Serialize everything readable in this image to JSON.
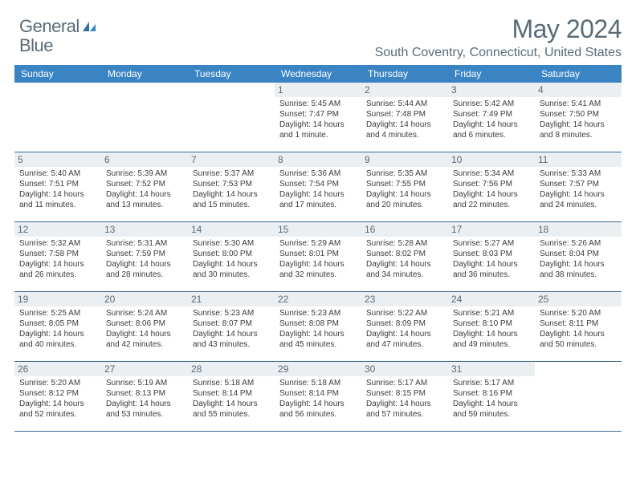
{
  "logo": {
    "text_general": "General",
    "text_blue": "Blue"
  },
  "title": "May 2024",
  "location": "South Coventry, Connecticut, United States",
  "day_names": [
    "Sunday",
    "Monday",
    "Tuesday",
    "Wednesday",
    "Thursday",
    "Friday",
    "Saturday"
  ],
  "colors": {
    "header_bg": "#3a84c4",
    "header_text": "#ffffff",
    "daynum_bg": "#eceff1",
    "text_muted": "#5a6b78",
    "border": "#3a6a94"
  },
  "weeks": [
    [
      {
        "n": "",
        "empty": true
      },
      {
        "n": "",
        "empty": true
      },
      {
        "n": "",
        "empty": true
      },
      {
        "n": "1",
        "sr": "Sunrise: 5:45 AM",
        "ss": "Sunset: 7:47 PM",
        "dl": "Daylight: 14 hours and 1 minute."
      },
      {
        "n": "2",
        "sr": "Sunrise: 5:44 AM",
        "ss": "Sunset: 7:48 PM",
        "dl": "Daylight: 14 hours and 4 minutes."
      },
      {
        "n": "3",
        "sr": "Sunrise: 5:42 AM",
        "ss": "Sunset: 7:49 PM",
        "dl": "Daylight: 14 hours and 6 minutes."
      },
      {
        "n": "4",
        "sr": "Sunrise: 5:41 AM",
        "ss": "Sunset: 7:50 PM",
        "dl": "Daylight: 14 hours and 8 minutes."
      }
    ],
    [
      {
        "n": "5",
        "sr": "Sunrise: 5:40 AM",
        "ss": "Sunset: 7:51 PM",
        "dl": "Daylight: 14 hours and 11 minutes."
      },
      {
        "n": "6",
        "sr": "Sunrise: 5:39 AM",
        "ss": "Sunset: 7:52 PM",
        "dl": "Daylight: 14 hours and 13 minutes."
      },
      {
        "n": "7",
        "sr": "Sunrise: 5:37 AM",
        "ss": "Sunset: 7:53 PM",
        "dl": "Daylight: 14 hours and 15 minutes."
      },
      {
        "n": "8",
        "sr": "Sunrise: 5:36 AM",
        "ss": "Sunset: 7:54 PM",
        "dl": "Daylight: 14 hours and 17 minutes."
      },
      {
        "n": "9",
        "sr": "Sunrise: 5:35 AM",
        "ss": "Sunset: 7:55 PM",
        "dl": "Daylight: 14 hours and 20 minutes."
      },
      {
        "n": "10",
        "sr": "Sunrise: 5:34 AM",
        "ss": "Sunset: 7:56 PM",
        "dl": "Daylight: 14 hours and 22 minutes."
      },
      {
        "n": "11",
        "sr": "Sunrise: 5:33 AM",
        "ss": "Sunset: 7:57 PM",
        "dl": "Daylight: 14 hours and 24 minutes."
      }
    ],
    [
      {
        "n": "12",
        "sr": "Sunrise: 5:32 AM",
        "ss": "Sunset: 7:58 PM",
        "dl": "Daylight: 14 hours and 26 minutes."
      },
      {
        "n": "13",
        "sr": "Sunrise: 5:31 AM",
        "ss": "Sunset: 7:59 PM",
        "dl": "Daylight: 14 hours and 28 minutes."
      },
      {
        "n": "14",
        "sr": "Sunrise: 5:30 AM",
        "ss": "Sunset: 8:00 PM",
        "dl": "Daylight: 14 hours and 30 minutes."
      },
      {
        "n": "15",
        "sr": "Sunrise: 5:29 AM",
        "ss": "Sunset: 8:01 PM",
        "dl": "Daylight: 14 hours and 32 minutes."
      },
      {
        "n": "16",
        "sr": "Sunrise: 5:28 AM",
        "ss": "Sunset: 8:02 PM",
        "dl": "Daylight: 14 hours and 34 minutes."
      },
      {
        "n": "17",
        "sr": "Sunrise: 5:27 AM",
        "ss": "Sunset: 8:03 PM",
        "dl": "Daylight: 14 hours and 36 minutes."
      },
      {
        "n": "18",
        "sr": "Sunrise: 5:26 AM",
        "ss": "Sunset: 8:04 PM",
        "dl": "Daylight: 14 hours and 38 minutes."
      }
    ],
    [
      {
        "n": "19",
        "sr": "Sunrise: 5:25 AM",
        "ss": "Sunset: 8:05 PM",
        "dl": "Daylight: 14 hours and 40 minutes."
      },
      {
        "n": "20",
        "sr": "Sunrise: 5:24 AM",
        "ss": "Sunset: 8:06 PM",
        "dl": "Daylight: 14 hours and 42 minutes."
      },
      {
        "n": "21",
        "sr": "Sunrise: 5:23 AM",
        "ss": "Sunset: 8:07 PM",
        "dl": "Daylight: 14 hours and 43 minutes."
      },
      {
        "n": "22",
        "sr": "Sunrise: 5:23 AM",
        "ss": "Sunset: 8:08 PM",
        "dl": "Daylight: 14 hours and 45 minutes."
      },
      {
        "n": "23",
        "sr": "Sunrise: 5:22 AM",
        "ss": "Sunset: 8:09 PM",
        "dl": "Daylight: 14 hours and 47 minutes."
      },
      {
        "n": "24",
        "sr": "Sunrise: 5:21 AM",
        "ss": "Sunset: 8:10 PM",
        "dl": "Daylight: 14 hours and 49 minutes."
      },
      {
        "n": "25",
        "sr": "Sunrise: 5:20 AM",
        "ss": "Sunset: 8:11 PM",
        "dl": "Daylight: 14 hours and 50 minutes."
      }
    ],
    [
      {
        "n": "26",
        "sr": "Sunrise: 5:20 AM",
        "ss": "Sunset: 8:12 PM",
        "dl": "Daylight: 14 hours and 52 minutes."
      },
      {
        "n": "27",
        "sr": "Sunrise: 5:19 AM",
        "ss": "Sunset: 8:13 PM",
        "dl": "Daylight: 14 hours and 53 minutes."
      },
      {
        "n": "28",
        "sr": "Sunrise: 5:18 AM",
        "ss": "Sunset: 8:14 PM",
        "dl": "Daylight: 14 hours and 55 minutes."
      },
      {
        "n": "29",
        "sr": "Sunrise: 5:18 AM",
        "ss": "Sunset: 8:14 PM",
        "dl": "Daylight: 14 hours and 56 minutes."
      },
      {
        "n": "30",
        "sr": "Sunrise: 5:17 AM",
        "ss": "Sunset: 8:15 PM",
        "dl": "Daylight: 14 hours and 57 minutes."
      },
      {
        "n": "31",
        "sr": "Sunrise: 5:17 AM",
        "ss": "Sunset: 8:16 PM",
        "dl": "Daylight: 14 hours and 59 minutes."
      },
      {
        "n": "",
        "empty": true
      }
    ]
  ]
}
